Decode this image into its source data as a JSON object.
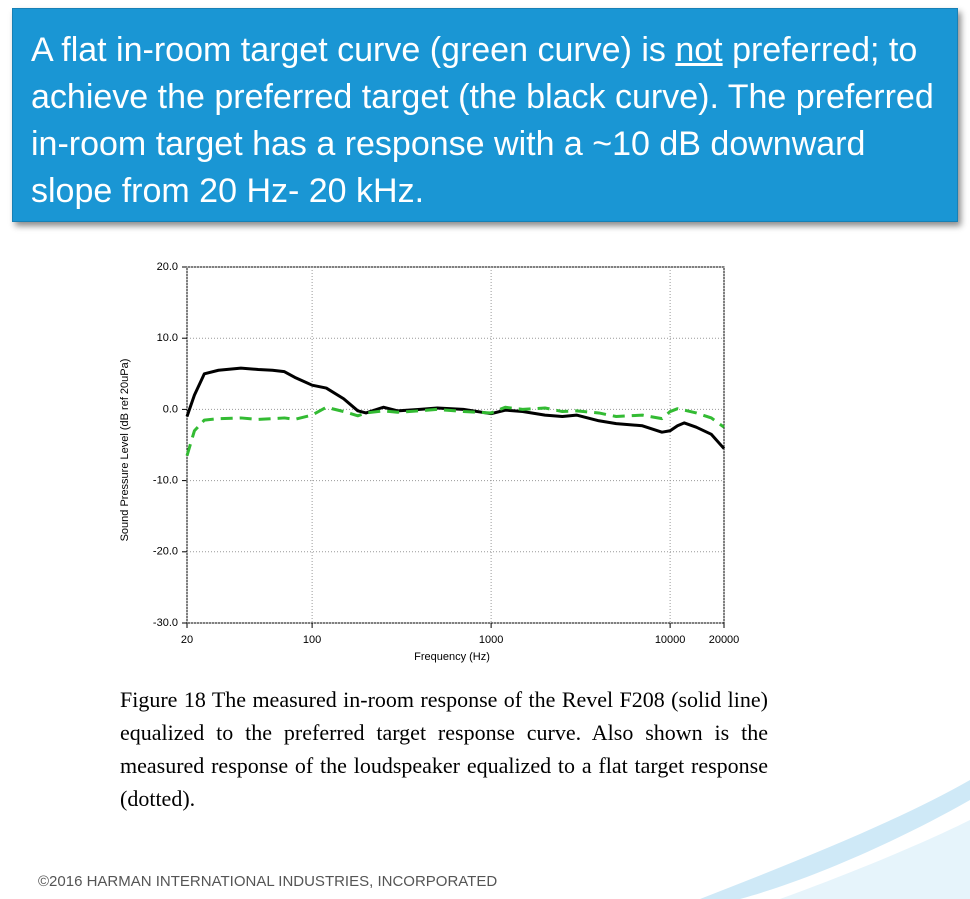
{
  "header": {
    "text_before": "A flat in-room target curve (green curve) is ",
    "emphasis": "not",
    "text_after": " preferred; to achieve the preferred target (the black curve). The preferred in-room target  has a response with a ~10 dB downward slope from 20 Hz- 20 kHz."
  },
  "caption": "Figure 18 The measured in-room response of the Revel F208 (solid line) equalized to the preferred target response curve. Also shown is the measured response of the loudspeaker equalized to a flat target response (dotted).",
  "footer": "©2016 HARMAN INTERNATIONAL INDUSTRIES, INCORPORATED",
  "chart_data": {
    "type": "line",
    "x_label": "Frequency (Hz)",
    "y_label": "Sound Pressure Level (dB ref 20uPa)",
    "x": [
      20,
      22,
      25,
      30,
      40,
      50,
      60,
      70,
      80,
      100,
      120,
      150,
      180,
      200,
      250,
      300,
      400,
      500,
      700,
      1000,
      1200,
      1500,
      2000,
      2500,
      3000,
      4000,
      5000,
      7000,
      9000,
      10000,
      11000,
      12000,
      14000,
      17000,
      20000
    ],
    "series": [
      {
        "color": "#000000",
        "dash": false,
        "values": [
          -1,
          2,
          5,
          5.5,
          5.8,
          5.6,
          5.5,
          5.3,
          4.5,
          3.4,
          3,
          1.5,
          -0.2,
          -0.5,
          0.3,
          -0.2,
          0,
          0.2,
          0,
          -0.6,
          -0.1,
          -0.3,
          -0.8,
          -1,
          -0.8,
          -1.6,
          -2,
          -2.3,
          -3.2,
          -3,
          -2.3,
          -1.9,
          -2.5,
          -3.5,
          -5.5
        ]
      },
      {
        "color": "#33bb33",
        "dash": true,
        "values": [
          -6.5,
          -3,
          -1.5,
          -1.3,
          -1.2,
          -1.4,
          -1.3,
          -1.2,
          -1.4,
          -0.8,
          0.3,
          -0.3,
          -0.9,
          -0.5,
          -0.2,
          -0.4,
          -0.2,
          0,
          -0.3,
          -0.5,
          0.3,
          0,
          0.2,
          -0.3,
          -0.2,
          -0.5,
          -1,
          -0.8,
          -1.3,
          -0.3,
          0.1,
          -0.1,
          -0.5,
          -1.2,
          -2.5
        ]
      }
    ],
    "xlim": [
      20,
      20000
    ],
    "xticks": [
      20,
      100,
      1000,
      10000,
      20000
    ],
    "xscale": "log",
    "ylim": [
      -30,
      20
    ],
    "yticks": [
      {
        "value": -30,
        "label": "-30.0"
      },
      {
        "value": -20,
        "label": "-20.0"
      },
      {
        "value": -10,
        "label": "-10.0"
      },
      {
        "value": 0,
        "label": "0.0"
      },
      {
        "value": 10,
        "label": "10.0"
      },
      {
        "value": 20,
        "label": "20.0"
      }
    ],
    "grid": true
  }
}
